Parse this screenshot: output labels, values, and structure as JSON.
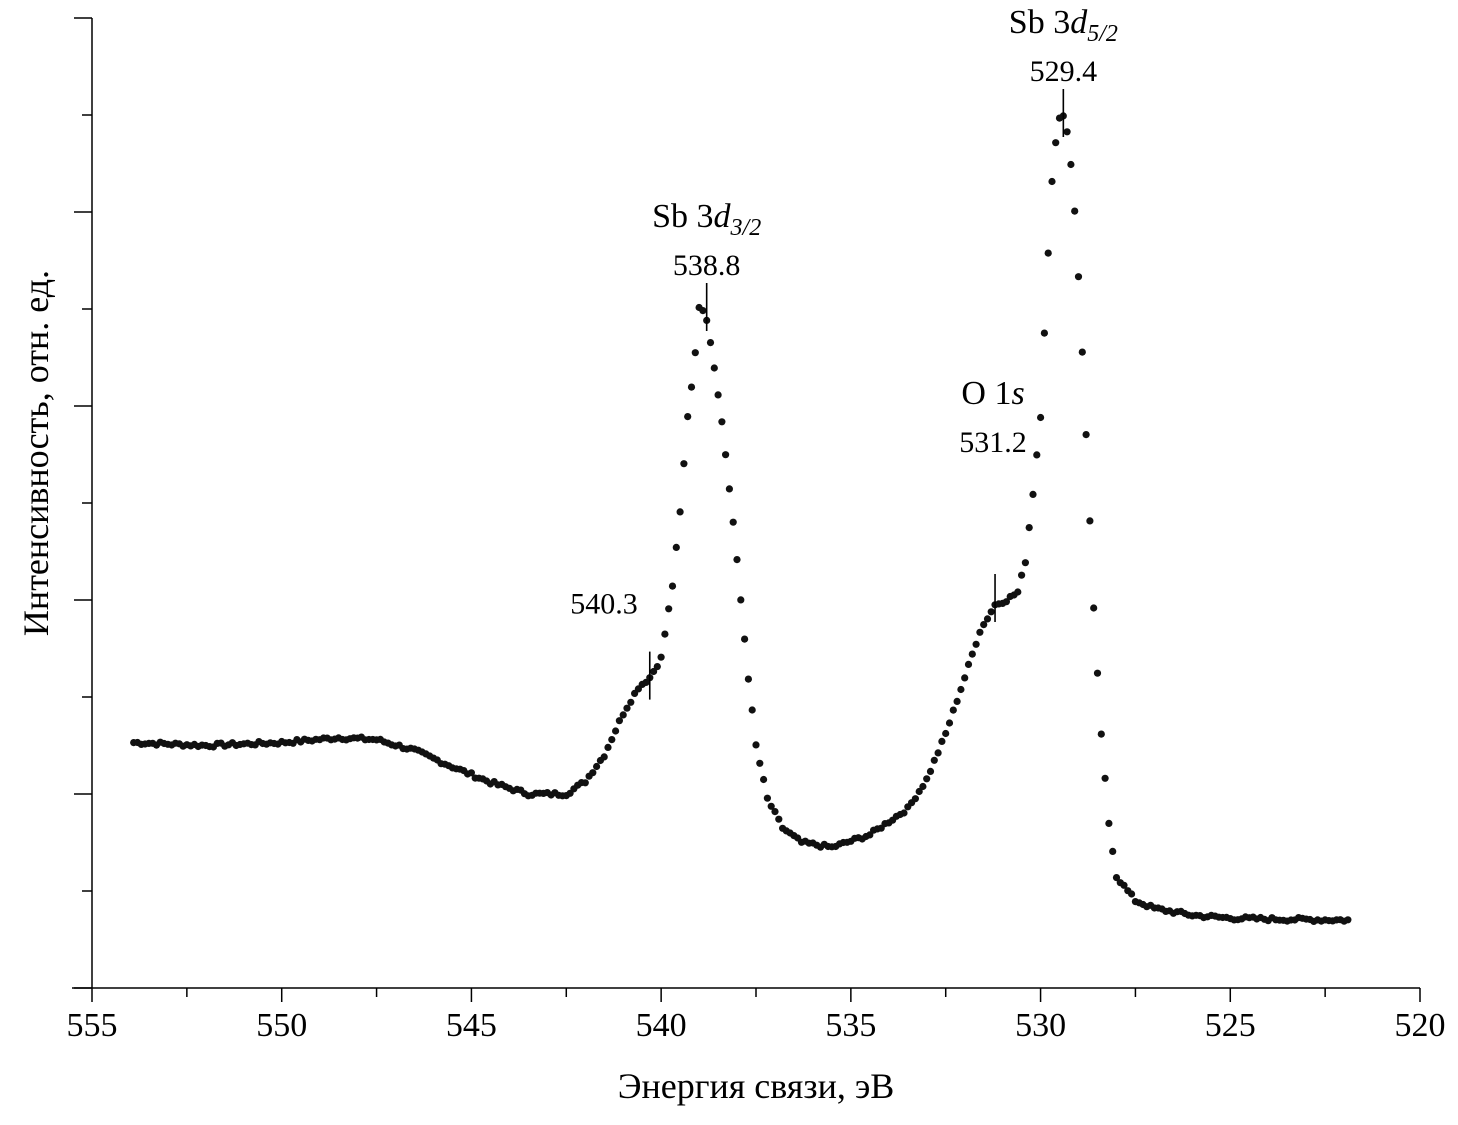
{
  "chart_data": {
    "type": "scatter",
    "title": "",
    "xlabel": "Энергия связи, эВ",
    "ylabel": "Интенсивность, отн. ед.",
    "xlim": [
      555,
      520
    ],
    "x_reversed": true,
    "ylim": [
      0,
      1
    ],
    "y_tick_labels_shown": false,
    "grid": false,
    "marker_color": "#111111",
    "x_ticks": [
      555,
      550,
      545,
      540,
      535,
      530,
      525,
      520
    ],
    "x_tick_labels": [
      "555",
      "550",
      "545",
      "540",
      "535",
      "530",
      "525",
      "520"
    ],
    "curve_knots": [
      [
        553.9,
        0.253
      ],
      [
        552.0,
        0.25
      ],
      [
        550.0,
        0.253
      ],
      [
        548.5,
        0.258
      ],
      [
        547.5,
        0.256
      ],
      [
        546.5,
        0.245
      ],
      [
        545.5,
        0.228
      ],
      [
        544.5,
        0.212
      ],
      [
        543.5,
        0.2
      ],
      [
        542.5,
        0.2
      ],
      [
        542.0,
        0.213
      ],
      [
        541.5,
        0.24
      ],
      [
        541.0,
        0.283
      ],
      [
        540.6,
        0.31
      ],
      [
        540.3,
        0.32
      ],
      [
        540.0,
        0.34
      ],
      [
        539.7,
        0.415
      ],
      [
        539.5,
        0.49
      ],
      [
        539.3,
        0.59
      ],
      [
        539.15,
        0.635
      ],
      [
        539.0,
        0.7
      ],
      [
        538.85,
        0.7
      ],
      [
        538.75,
        0.68
      ],
      [
        538.6,
        0.64
      ],
      [
        538.45,
        0.6
      ],
      [
        538.3,
        0.55
      ],
      [
        538.1,
        0.48
      ],
      [
        537.9,
        0.4
      ],
      [
        537.7,
        0.32
      ],
      [
        537.5,
        0.25
      ],
      [
        537.2,
        0.195
      ],
      [
        536.8,
        0.165
      ],
      [
        536.3,
        0.15
      ],
      [
        535.5,
        0.145
      ],
      [
        534.5,
        0.158
      ],
      [
        533.5,
        0.185
      ],
      [
        533.0,
        0.215
      ],
      [
        532.5,
        0.262
      ],
      [
        532.0,
        0.32
      ],
      [
        531.6,
        0.368
      ],
      [
        531.2,
        0.395
      ],
      [
        530.9,
        0.4
      ],
      [
        530.6,
        0.408
      ],
      [
        530.4,
        0.44
      ],
      [
        530.2,
        0.51
      ],
      [
        530.0,
        0.59
      ],
      [
        529.85,
        0.72
      ],
      [
        529.7,
        0.83
      ],
      [
        529.55,
        0.895
      ],
      [
        529.4,
        0.9
      ],
      [
        529.25,
        0.875
      ],
      [
        529.1,
        0.8
      ],
      [
        528.95,
        0.7
      ],
      [
        528.8,
        0.57
      ],
      [
        528.6,
        0.39
      ],
      [
        528.4,
        0.26
      ],
      [
        528.2,
        0.17
      ],
      [
        528.0,
        0.115
      ],
      [
        527.5,
        0.09
      ],
      [
        527.0,
        0.082
      ],
      [
        526.0,
        0.075
      ],
      [
        525.0,
        0.072
      ],
      [
        524.0,
        0.071
      ],
      [
        521.9,
        0.07
      ]
    ],
    "annotations": [
      {
        "label": "Sb 3d",
        "subscript": "3/2",
        "value": "538.8",
        "x": 538.8,
        "y": 0.7
      },
      {
        "label": "Sb 3d",
        "subscript": "5/2",
        "value": "529.4",
        "x": 529.4,
        "y": 0.9
      },
      {
        "label": "O 1s",
        "subscript": "",
        "value": "531.2",
        "x": 531.2,
        "y": 0.4
      },
      {
        "label": "",
        "subscript": "",
        "value": "540.3",
        "x": 540.3,
        "y": 0.32
      }
    ]
  }
}
